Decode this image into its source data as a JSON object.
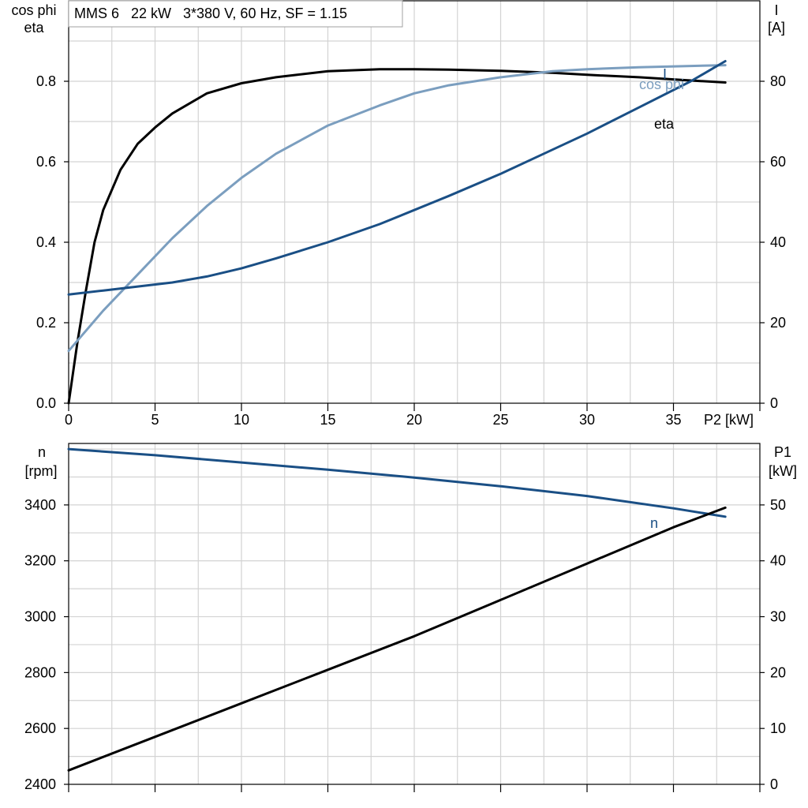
{
  "chart_data": [
    {
      "type": "line",
      "title": "MMS 6   22 kW   3*380 V, 60 Hz, SF = 1.15",
      "xlabel": "P2 [kW]",
      "xlim": [
        0,
        40
      ],
      "x_ticks": [
        0,
        5,
        10,
        15,
        20,
        25,
        30,
        35
      ],
      "x_tick_labels": [
        "0",
        "5",
        "10",
        "15",
        "20",
        "25",
        "30",
        "35"
      ],
      "ylabel_left": [
        "cos phi",
        "eta"
      ],
      "ylim_left": [
        0,
        1.0
      ],
      "y_ticks_left": [
        0,
        0.2,
        0.4,
        0.6,
        0.8
      ],
      "y_tick_labels_left": [
        "0.0",
        "0.2",
        "0.4",
        "0.6",
        "0.8"
      ],
      "ylabel_right": [
        "I",
        "[A]"
      ],
      "ylim_right": [
        0,
        100
      ],
      "y_ticks_right": [
        0,
        20,
        40,
        60,
        80
      ],
      "y_tick_labels_right": [
        "0",
        "20",
        "40",
        "60",
        "80"
      ],
      "grid": true,
      "series": [
        {
          "name": "eta",
          "axis": "left",
          "color": "#000000",
          "x": [
            0,
            0.5,
            1,
            1.5,
            2,
            3,
            4,
            5,
            6,
            8,
            10,
            12,
            15,
            18,
            20,
            22,
            25,
            28,
            30,
            33,
            36,
            38
          ],
          "y": [
            0.0,
            0.15,
            0.28,
            0.4,
            0.48,
            0.58,
            0.645,
            0.685,
            0.72,
            0.77,
            0.795,
            0.81,
            0.825,
            0.83,
            0.83,
            0.829,
            0.826,
            0.821,
            0.816,
            0.81,
            0.802,
            0.797
          ]
        },
        {
          "name": "cos phi",
          "axis": "left",
          "color": "#7b9ebf",
          "x": [
            0,
            2,
            4,
            6,
            8,
            10,
            12,
            15,
            18,
            20,
            22,
            25,
            28,
            30,
            33,
            36,
            38
          ],
          "y": [
            0.13,
            0.23,
            0.32,
            0.41,
            0.49,
            0.56,
            0.62,
            0.69,
            0.74,
            0.77,
            0.79,
            0.81,
            0.825,
            0.83,
            0.835,
            0.838,
            0.84
          ]
        },
        {
          "name": "I",
          "axis": "right",
          "color": "#1a4f85",
          "x": [
            0,
            2,
            4,
            6,
            8,
            10,
            12,
            15,
            18,
            20,
            22,
            25,
            28,
            30,
            33,
            36,
            38
          ],
          "y": [
            27,
            28,
            29,
            30,
            31.5,
            33.5,
            36,
            40,
            44.5,
            48,
            51.5,
            57,
            63,
            67,
            73.5,
            80,
            85
          ]
        }
      ]
    },
    {
      "type": "line",
      "xlim": [
        0,
        40
      ],
      "x_ticks": [
        0,
        5,
        10,
        15,
        20,
        25,
        30,
        35
      ],
      "ylabel_left": [
        "n",
        "[rpm]"
      ],
      "ylim_left": [
        2400,
        3620
      ],
      "y_ticks_left": [
        2400,
        2600,
        2800,
        3000,
        3200,
        3400
      ],
      "y_tick_labels_left": [
        "2400",
        "2600",
        "2800",
        "3000",
        "3200",
        "3400"
      ],
      "ylabel_right": [
        "P1",
        "[kW]"
      ],
      "ylim_right": [
        0,
        61
      ],
      "y_ticks_right": [
        0,
        10,
        20,
        30,
        40,
        50
      ],
      "y_tick_labels_right": [
        "0",
        "10",
        "20",
        "30",
        "40",
        "50"
      ],
      "grid": true,
      "series": [
        {
          "name": "n",
          "axis": "left",
          "color": "#1a4f85",
          "x": [
            0,
            5,
            10,
            15,
            20,
            25,
            30,
            35,
            38
          ],
          "y": [
            3600,
            3578,
            3552,
            3526,
            3498,
            3467,
            3432,
            3388,
            3358
          ]
        },
        {
          "axis": "right",
          "color": "#000000",
          "x": [
            0,
            5,
            10,
            15,
            20,
            25,
            30,
            35,
            38
          ],
          "y": [
            2.5,
            8.5,
            14.5,
            20.5,
            26.5,
            33,
            39.5,
            46,
            49.5
          ]
        }
      ]
    }
  ]
}
